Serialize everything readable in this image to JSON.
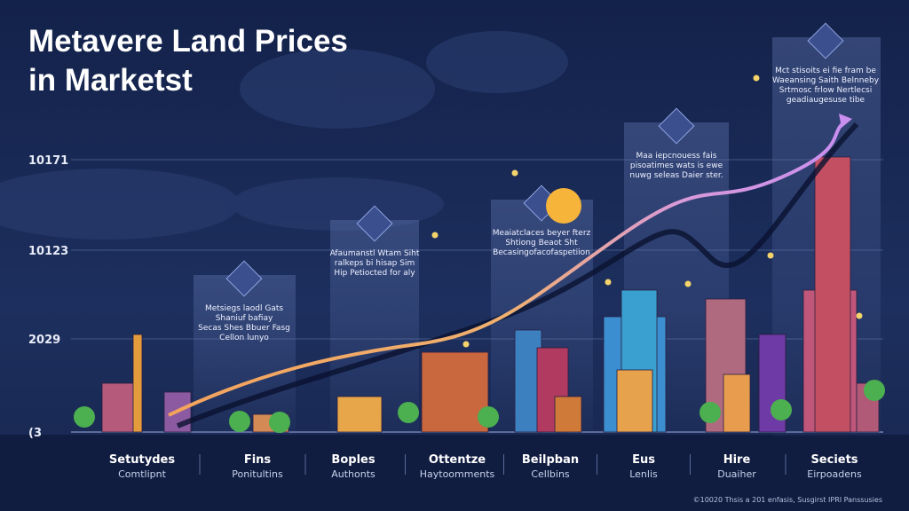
{
  "header": {
    "title_lines": [
      "Metavere Land Prices",
      "in Marketst"
    ]
  },
  "axis_labels": [
    "10171",
    "10123",
    "2029",
    "(3"
  ],
  "categories": [
    {
      "name": "Setutydes",
      "sub": "Comtlipnt"
    },
    {
      "name": "Fins",
      "sub": "Ponitultins"
    },
    {
      "name": "Boples",
      "sub": "Authonts"
    },
    {
      "name": "Ottentze",
      "sub": "Haytoomments"
    },
    {
      "name": "Beilpban",
      "sub": "Cellbins"
    },
    {
      "name": "Eus",
      "sub": "Lenlis"
    },
    {
      "name": "Hire",
      "sub": "Duaiher"
    },
    {
      "name": "Seciets",
      "sub": "Eirpoadens"
    }
  ],
  "callouts": [
    {
      "lines": [
        "Metsiegs laodl Gats",
        "Shaniuf bafiay",
        "Secas Shes Bbuer Fasg",
        "Cellon lunyo"
      ]
    },
    {
      "lines": [
        "Afaumanstl Wtam Siht",
        "ralkeps bi hisap Sim",
        "Hip Petiocted for aly"
      ]
    },
    {
      "lines": [
        "Meaiatclaces beyer fterz",
        "Shtiong Beaot Sht",
        "Becasingofacofaspetiion"
      ]
    },
    {
      "lines": [
        "Maa iepcnouess fais",
        "pisoatimes wats is ewe",
        "nuwg seleas Daier ster."
      ]
    },
    {
      "lines": [
        "Mct stisoits ei fie fram be",
        "Waeansing Saith Belnneby",
        "Srtmosc frlow Nertlecsi",
        "geadiaugesuse tibe"
      ]
    }
  ],
  "footer": "©10020 Thsis a 201 enfasis, Susgirst IPRI Panssusies"
}
